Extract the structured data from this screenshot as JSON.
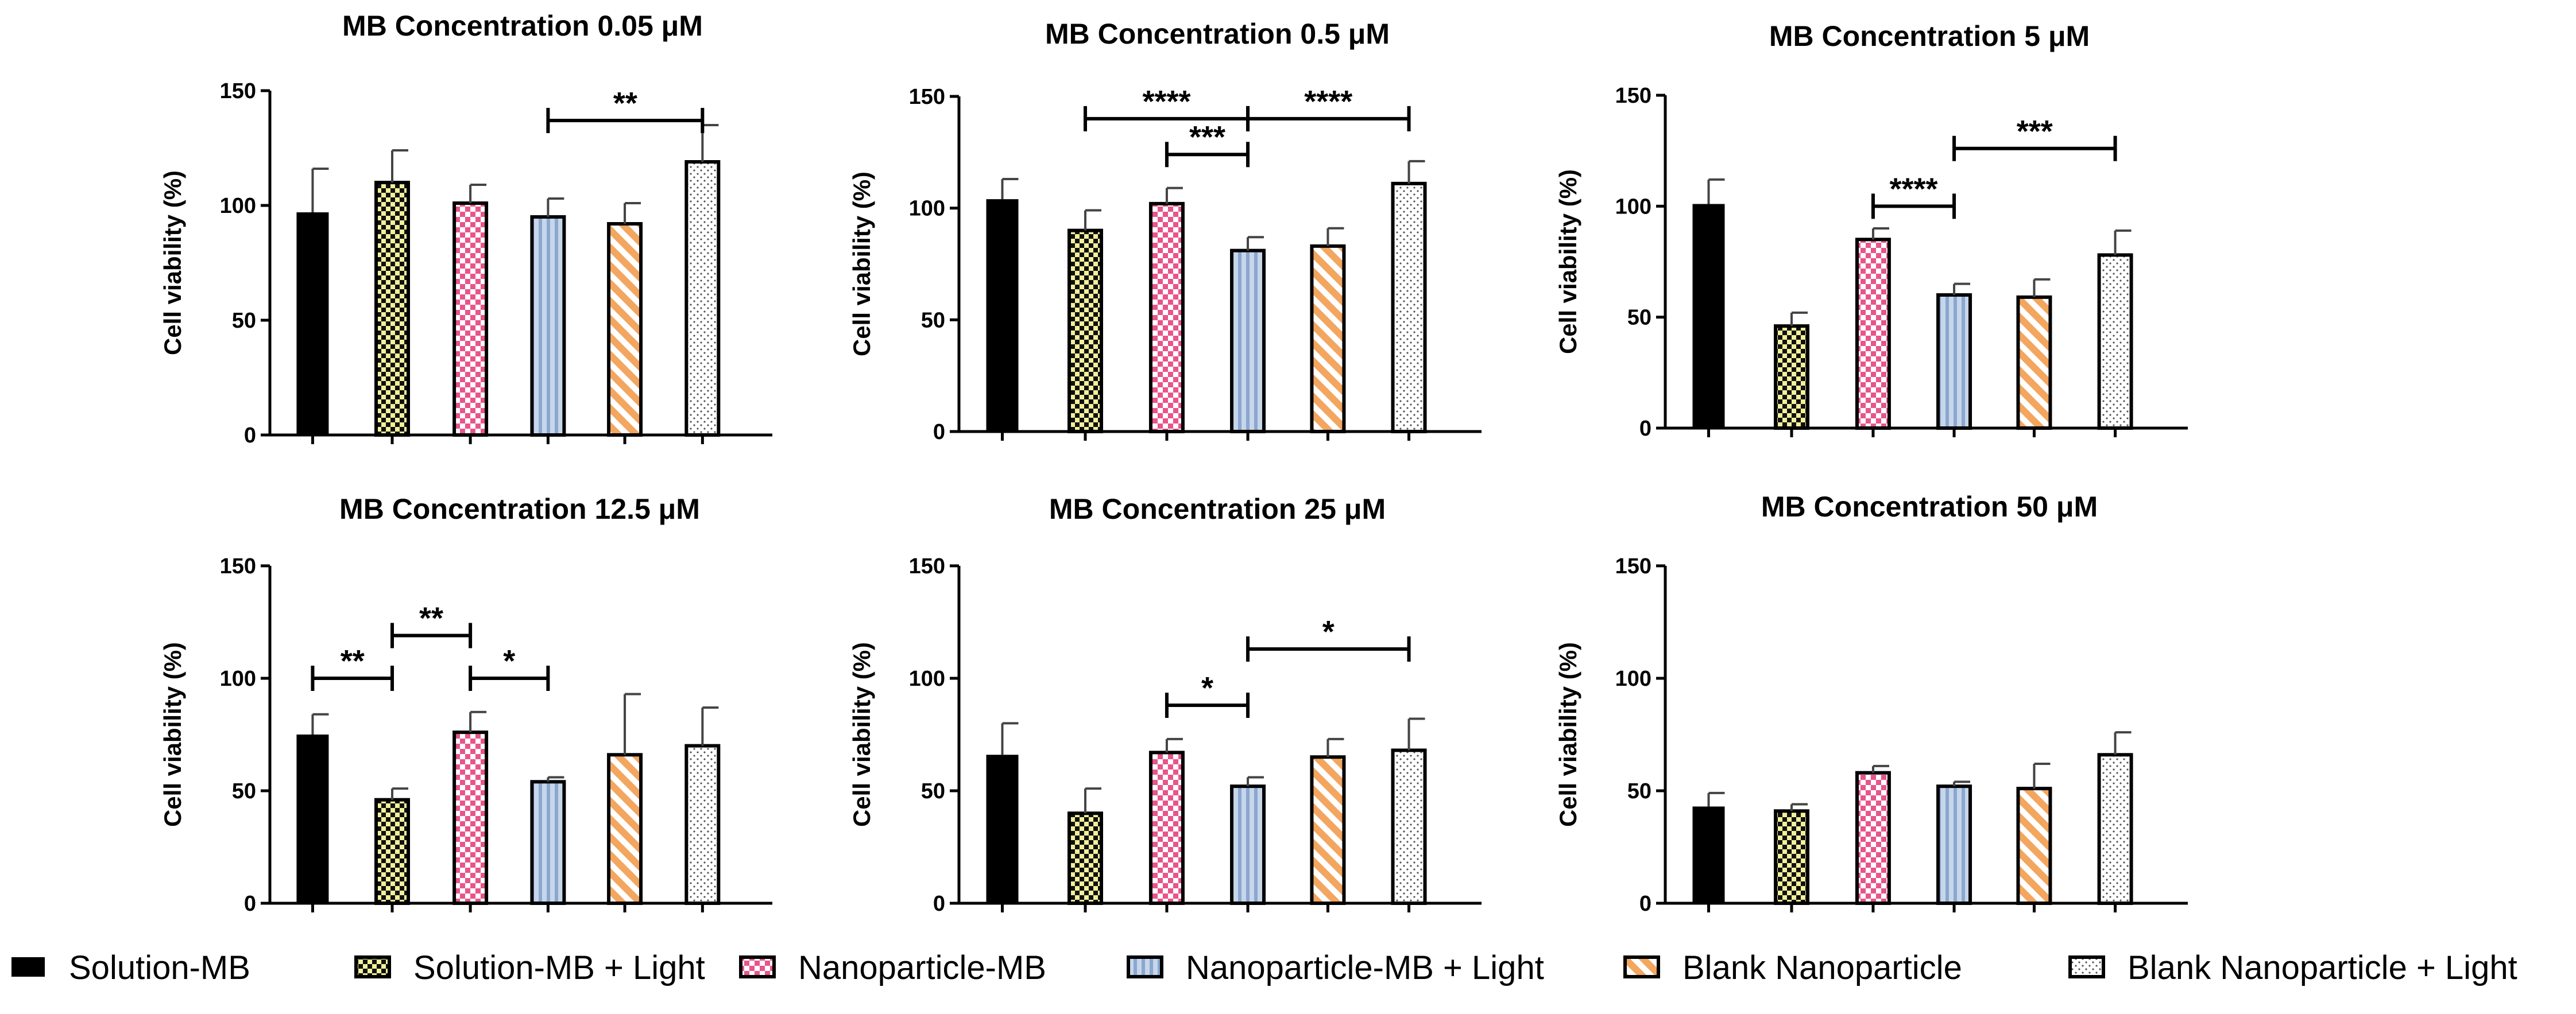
{
  "legend": [
    {
      "label": "Solution-MB",
      "pattern": "solid-black"
    },
    {
      "label": "Solution-MB + Light",
      "pattern": "checker-yellow"
    },
    {
      "label": "Nanoparticle-MB",
      "pattern": "checker-pink"
    },
    {
      "label": "Nanoparticle-MB + Light",
      "pattern": "vstripe-blue"
    },
    {
      "label": "Blank Nanoparticle",
      "pattern": "diagonal-orange"
    },
    {
      "label": "Blank Nanoparticle + Light",
      "pattern": "dots-white"
    }
  ],
  "chart_data": [
    {
      "type": "bar",
      "title": "MB Concentration 0.05 μM",
      "ylabel": "Cell viability (%)",
      "ylim": [
        0,
        150
      ],
      "yticks": [
        0,
        50,
        100,
        150
      ],
      "values": [
        97,
        110,
        101,
        95,
        92,
        119
      ],
      "errors": [
        19,
        14,
        8,
        8,
        9,
        16
      ],
      "significance": [
        {
          "from": 3,
          "to": 5,
          "label": "**",
          "level": 137
        }
      ]
    },
    {
      "type": "bar",
      "title": "MB Concentration 0.5 μM",
      "ylabel": "Cell viability (%)",
      "ylim": [
        0,
        150
      ],
      "yticks": [
        0,
        50,
        100,
        150
      ],
      "values": [
        104,
        90,
        102,
        81,
        83,
        111
      ],
      "errors": [
        9,
        9,
        7,
        6,
        8,
        10
      ],
      "significance": [
        {
          "from": 1,
          "to": 3,
          "label": "****",
          "level": 140
        },
        {
          "from": 3,
          "to": 5,
          "label": "****",
          "level": 140
        },
        {
          "from": 2,
          "to": 3,
          "label": "***",
          "level": 124
        }
      ]
    },
    {
      "type": "bar",
      "title": "MB Concentration 5 μM",
      "ylabel": "Cell viability (%)",
      "ylim": [
        0,
        150
      ],
      "yticks": [
        0,
        50,
        100,
        150
      ],
      "values": [
        101,
        46,
        85,
        60,
        59,
        78
      ],
      "errors": [
        11,
        6,
        5,
        5,
        8,
        11
      ],
      "significance": [
        {
          "from": 3,
          "to": 5,
          "label": "***",
          "level": 126
        },
        {
          "from": 2,
          "to": 3,
          "label": "****",
          "level": 100
        }
      ]
    },
    {
      "type": "bar",
      "title": "MB Concentration 12.5 μM",
      "ylabel": "Cell viability (%)",
      "ylim": [
        0,
        150
      ],
      "yticks": [
        0,
        50,
        100,
        150
      ],
      "values": [
        75,
        46,
        76,
        54,
        66,
        70
      ],
      "errors": [
        9,
        5,
        9,
        2,
        27,
        17
      ],
      "significance": [
        {
          "from": 0,
          "to": 1,
          "label": "**",
          "level": 100
        },
        {
          "from": 1,
          "to": 2,
          "label": "**",
          "level": 119
        },
        {
          "from": 2,
          "to": 3,
          "label": "*",
          "level": 100
        }
      ]
    },
    {
      "type": "bar",
      "title": "MB Concentration 25 μM",
      "ylabel": "Cell viability (%)",
      "ylim": [
        0,
        150
      ],
      "yticks": [
        0,
        50,
        100,
        150
      ],
      "values": [
        66,
        40,
        67,
        52,
        65,
        68
      ],
      "errors": [
        14,
        11,
        6,
        4,
        8,
        14
      ],
      "significance": [
        {
          "from": 3,
          "to": 5,
          "label": "*",
          "level": 113
        },
        {
          "from": 2,
          "to": 3,
          "label": "*",
          "level": 88
        }
      ]
    },
    {
      "type": "bar",
      "title": "MB Concentration 50 μM",
      "ylabel": "Cell viability (%)",
      "ylim": [
        0,
        150
      ],
      "yticks": [
        0,
        50,
        100,
        150
      ],
      "values": [
        43,
        41,
        58,
        52,
        51,
        66
      ],
      "errors": [
        6,
        3,
        3,
        2,
        11,
        10
      ],
      "significance": []
    }
  ]
}
